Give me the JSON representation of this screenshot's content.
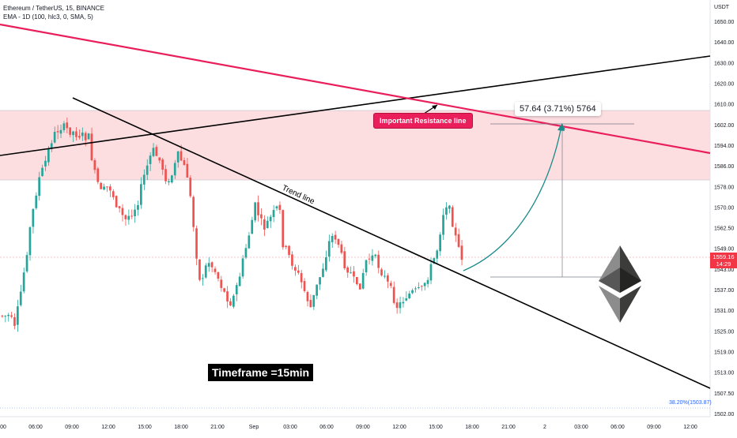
{
  "header": {
    "symbol_line": "Ethereum / TetherUS, 15, BINANCE",
    "indicator_line": "EMA - 1D (100, hlc3, 0, SMA, 5)"
  },
  "chart_data": {
    "type": "candlestick",
    "price_axis": {
      "unit": "USDT",
      "ticks": [
        1650,
        1640,
        1630,
        1620,
        1610,
        1602,
        1594,
        1586,
        1578,
        1570,
        1562.5,
        1549,
        1543,
        1537,
        1531,
        1525,
        1519,
        1513,
        1507.5,
        1502
      ],
      "labels": [
        "1650.00",
        "1640.00",
        "1630.00",
        "1620.00",
        "1610.00",
        "1602.00",
        "1594.00",
        "1586.00",
        "1578.00",
        "1570.00",
        "1562.50",
        "1549.00",
        "1543.00",
        "1537.00",
        "1531.00",
        "1525.00",
        "1519.00",
        "1513.00",
        "1507.50",
        "1502.00"
      ]
    },
    "time_axis": {
      "labels": [
        "00",
        "06:00",
        "09:00",
        "12:00",
        "15:00",
        "18:00",
        "21:00",
        "Sep",
        "03:00",
        "06:00",
        "09:00",
        "12:00",
        "15:00",
        "18:00",
        "21:00",
        "2",
        "03:00",
        "06:00",
        "09:00",
        "12:00"
      ]
    },
    "last_price": {
      "value": "1559.16",
      "countdown": "14:29"
    },
    "resistance_zone": {
      "from": 1587,
      "to": 1615
    },
    "annotations": {
      "trend_line_label": "Trend line",
      "resistance_label": "Important Resistance line",
      "timeframe_label": "Timeframe =15min",
      "measure_label": "57.64 (3.71%) 5764",
      "fib_label": "38.20%(1503.87)"
    },
    "colors": {
      "up": "#26a69a",
      "down": "#ef5350",
      "zone": "#fbd5d9",
      "resistance": "#e91e5b",
      "projection": "#1a8a8a"
    }
  }
}
